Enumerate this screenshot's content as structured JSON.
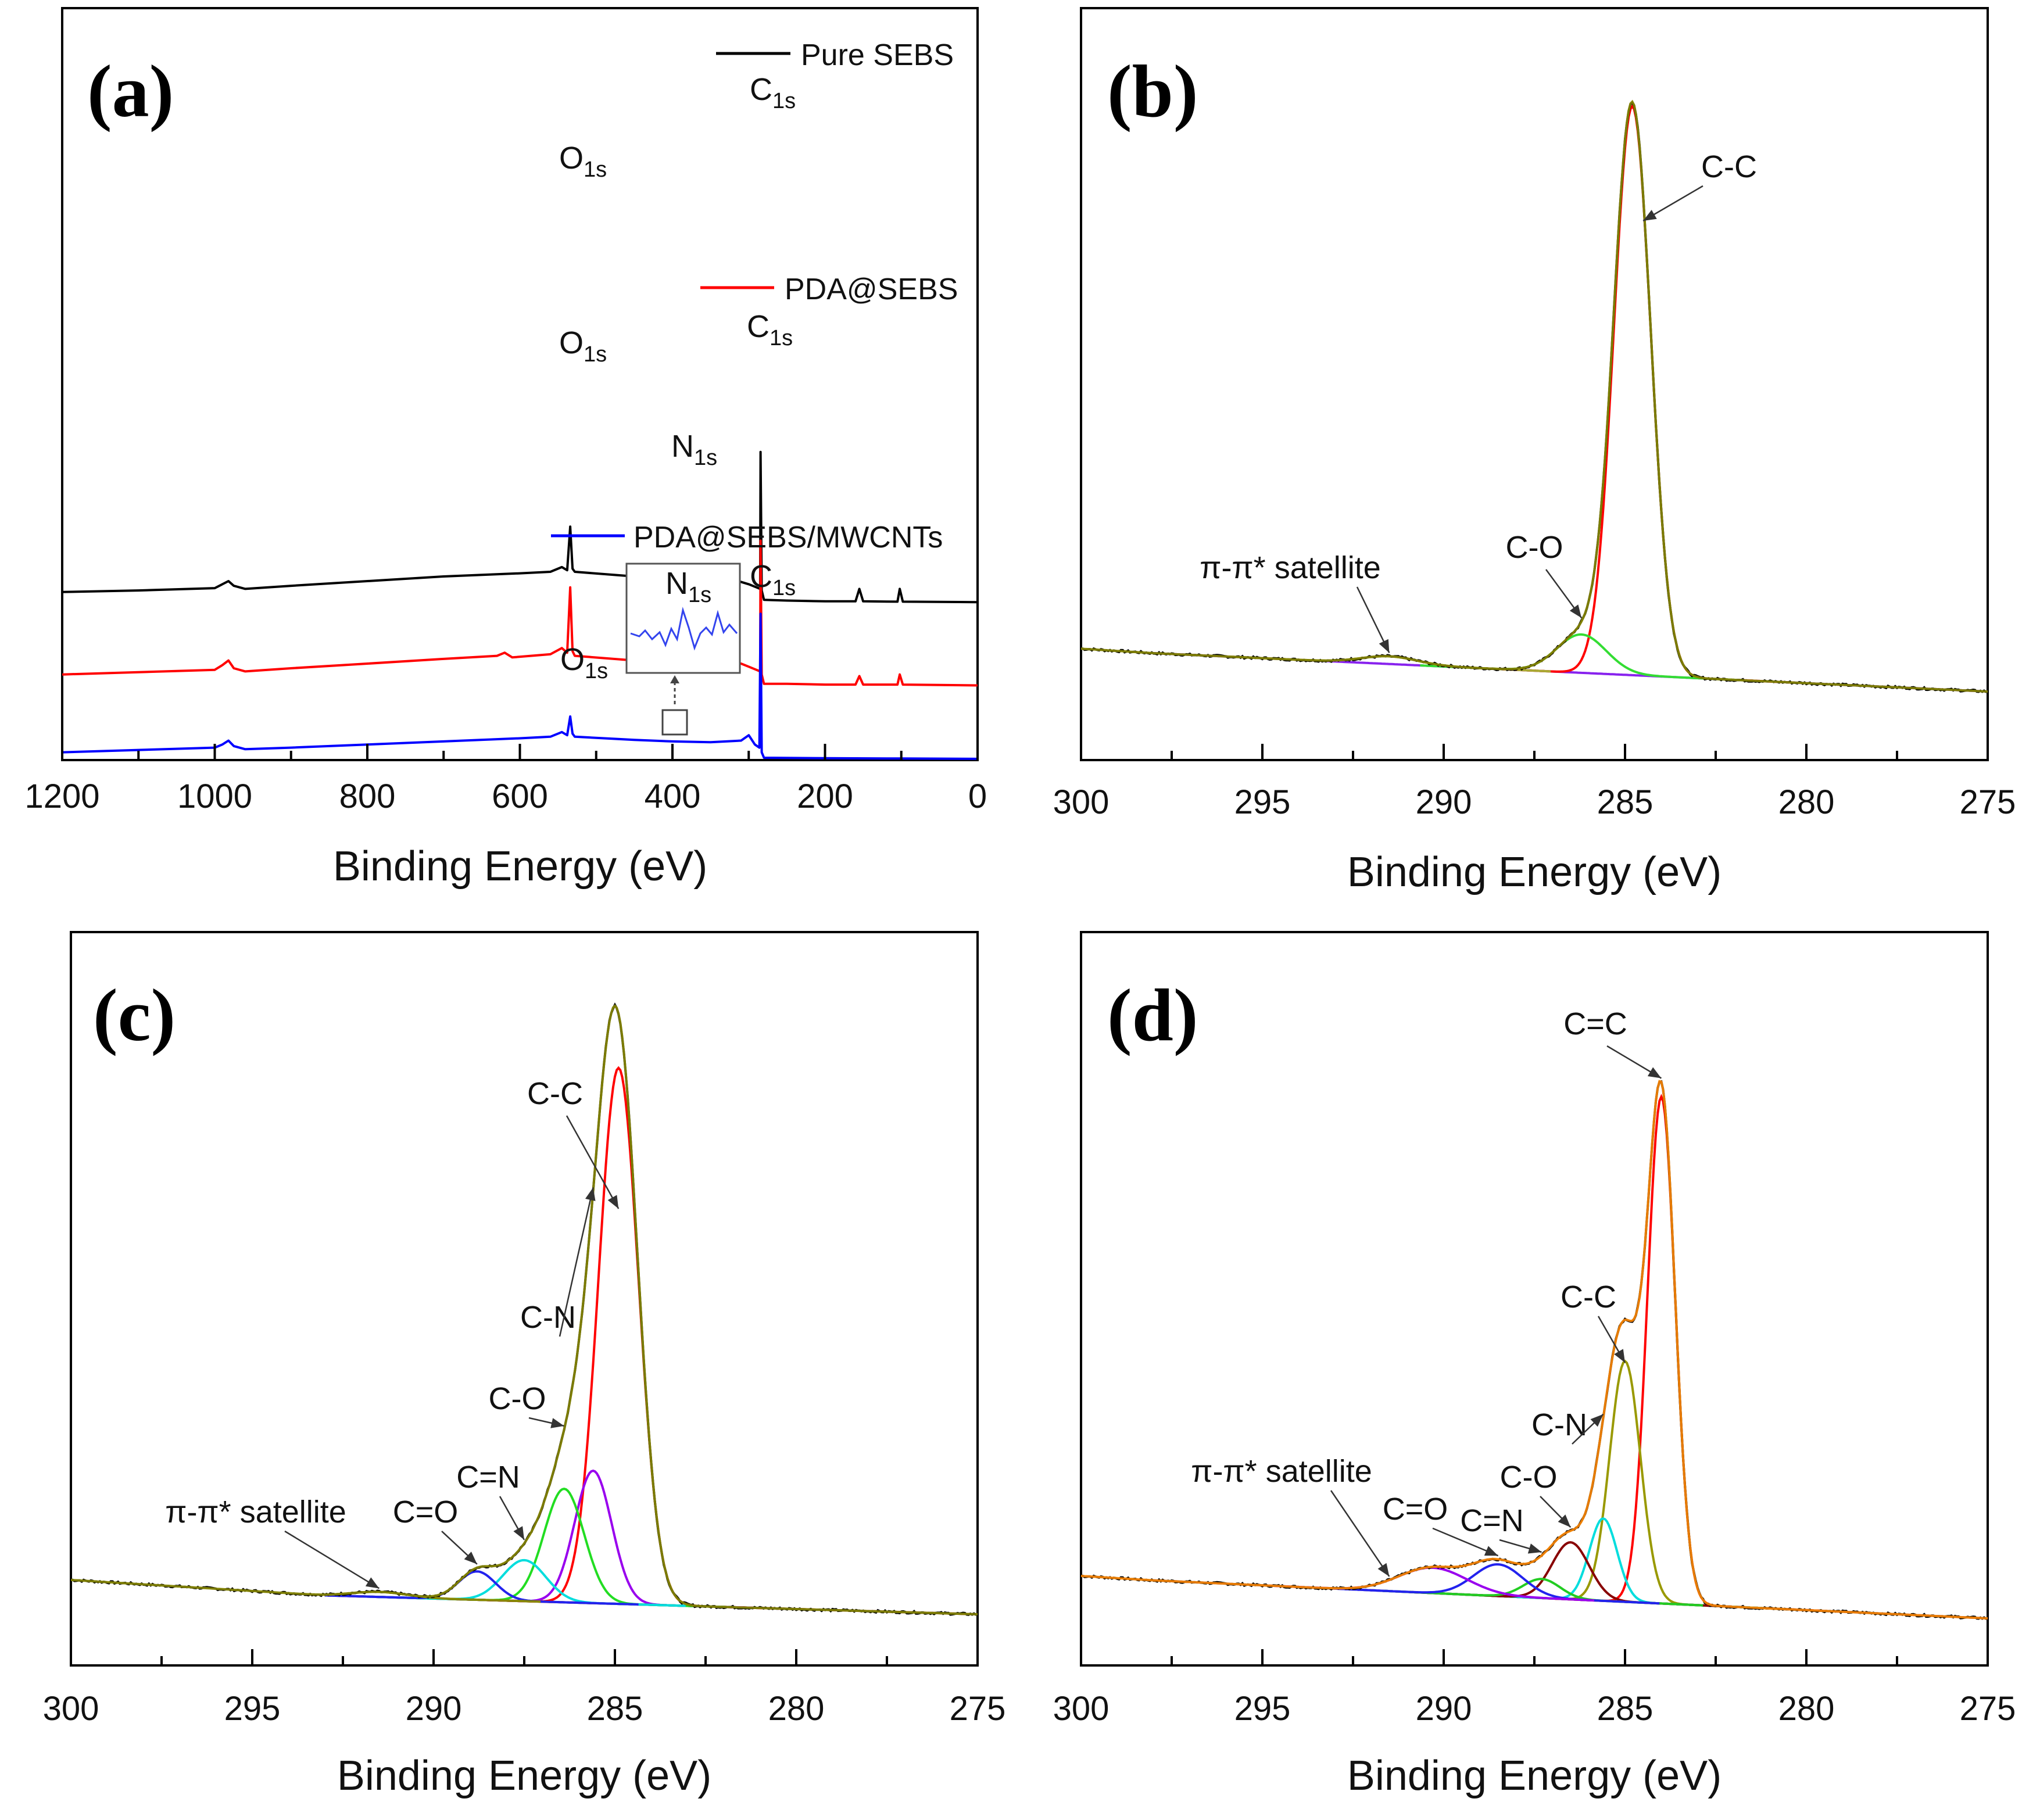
{
  "chart_data": [
    {
      "panel": "(a)",
      "type": "line",
      "title": "",
      "xlabel": "Binding Energy (eV)",
      "ylabel": "",
      "xlim": [
        1200,
        0
      ],
      "xticks": [
        1200,
        1000,
        800,
        600,
        400,
        200,
        0
      ],
      "grid": false,
      "legend_placement": "inline-right",
      "series": [
        {
          "name": "Pure SEBS",
          "color": "#000000",
          "offset": 10.8,
          "points": [
            [
              1200,
              0.0
            ],
            [
              1100,
              0.1
            ],
            [
              1000,
              0.25
            ],
            [
              990,
              0.5
            ],
            [
              982,
              0.7
            ],
            [
              975,
              0.4
            ],
            [
              960,
              0.2
            ],
            [
              900,
              0.4
            ],
            [
              800,
              0.7
            ],
            [
              700,
              1.0
            ],
            [
              600,
              1.2
            ],
            [
              560,
              1.3
            ],
            [
              545,
              1.6
            ],
            [
              538,
              1.4
            ],
            [
              534,
              4.2
            ],
            [
              531,
              1.5
            ],
            [
              528,
              1.3
            ],
            [
              450,
              1.0
            ],
            [
              350,
              0.75
            ],
            [
              310,
              0.65
            ],
            [
              300,
              0.5
            ],
            [
              290,
              0.3
            ],
            [
              285,
              0.2
            ],
            [
              284.5,
              9.0
            ],
            [
              283,
              0.1
            ],
            [
              280,
              -0.5
            ],
            [
              250,
              -0.55
            ],
            [
              200,
              -0.6
            ],
            [
              160,
              -0.6
            ],
            [
              155,
              0.2
            ],
            [
              150,
              -0.6
            ],
            [
              105,
              -0.62
            ],
            [
              102,
              0.2
            ],
            [
              98,
              -0.62
            ],
            [
              0,
              -0.65
            ]
          ]
        },
        {
          "name": "PDA@SEBS",
          "color": "#ff0000",
          "offset": 5.5,
          "points": [
            [
              1200,
              0.0
            ],
            [
              1100,
              0.15
            ],
            [
              1000,
              0.3
            ],
            [
              990,
              0.6
            ],
            [
              982,
              0.9
            ],
            [
              975,
              0.4
            ],
            [
              960,
              0.2
            ],
            [
              900,
              0.4
            ],
            [
              800,
              0.7
            ],
            [
              700,
              1.0
            ],
            [
              630,
              1.2
            ],
            [
              620,
              1.4
            ],
            [
              610,
              1.1
            ],
            [
              560,
              1.3
            ],
            [
              545,
              1.7
            ],
            [
              538,
              1.4
            ],
            [
              534,
              5.6
            ],
            [
              531,
              1.5
            ],
            [
              528,
              1.2
            ],
            [
              450,
              0.9
            ],
            [
              400,
              0.8
            ],
            [
              395,
              1.05
            ],
            [
              390,
              0.8
            ],
            [
              350,
              0.75
            ],
            [
              310,
              0.7
            ],
            [
              300,
              0.5
            ],
            [
              290,
              0.3
            ],
            [
              285,
              0.2
            ],
            [
              284.5,
              8.6
            ],
            [
              283,
              0.0
            ],
            [
              280,
              -0.6
            ],
            [
              250,
              -0.6
            ],
            [
              200,
              -0.65
            ],
            [
              160,
              -0.65
            ],
            [
              155,
              -0.1
            ],
            [
              150,
              -0.65
            ],
            [
              105,
              -0.65
            ],
            [
              102,
              0.0
            ],
            [
              98,
              -0.65
            ],
            [
              0,
              -0.7
            ]
          ]
        },
        {
          "name": "PDA@SEBS/MWCNTs",
          "color": "#0000ff",
          "offset": 0.5,
          "points": [
            [
              1200,
              0.0
            ],
            [
              1100,
              0.15
            ],
            [
              1000,
              0.3
            ],
            [
              990,
              0.5
            ],
            [
              982,
              0.75
            ],
            [
              975,
              0.4
            ],
            [
              960,
              0.2
            ],
            [
              900,
              0.3
            ],
            [
              800,
              0.5
            ],
            [
              700,
              0.7
            ],
            [
              600,
              0.9
            ],
            [
              560,
              1.0
            ],
            [
              545,
              1.3
            ],
            [
              538,
              1.1
            ],
            [
              534,
              2.3
            ],
            [
              531,
              1.2
            ],
            [
              528,
              1.0
            ],
            [
              450,
              0.8
            ],
            [
              400,
              0.7
            ],
            [
              350,
              0.65
            ],
            [
              310,
              0.75
            ],
            [
              300,
              1.1
            ],
            [
              292,
              0.5
            ],
            [
              286,
              0.3
            ],
            [
              284.5,
              8.9
            ],
            [
              283,
              0.0
            ],
            [
              280,
              -0.35
            ],
            [
              200,
              -0.38
            ],
            [
              100,
              -0.4
            ],
            [
              0,
              -0.42
            ]
          ]
        }
      ],
      "annotations": [
        {
          "text": "O",
          "sub": "1s",
          "series": "Pure SEBS"
        },
        {
          "text": "C",
          "sub": "1s",
          "series": "Pure SEBS"
        },
        {
          "text": "O",
          "sub": "1s",
          "series": "PDA@SEBS"
        },
        {
          "text": "C",
          "sub": "1s",
          "series": "PDA@SEBS"
        },
        {
          "text": "N",
          "sub": "1s",
          "series": "PDA@SEBS"
        },
        {
          "text": "O",
          "sub": "1s",
          "series": "PDA@SEBS/MWCNTs"
        },
        {
          "text": "C",
          "sub": "1s",
          "series": "PDA@SEBS/MWCNTs"
        },
        {
          "text": "N",
          "sub": "1s",
          "series": "PDA@SEBS/MWCNTs (inset)"
        }
      ]
    },
    {
      "panel": "(b)",
      "type": "line",
      "title": "",
      "xlabel": "Binding Energy (eV)",
      "ylabel": "",
      "xlim": [
        300,
        275
      ],
      "xticks": [
        300,
        295,
        290,
        285,
        280,
        275
      ],
      "ylim": [
        -1,
        100
      ],
      "grid": false,
      "series": [
        {
          "name": "raw spectrum",
          "color": "#000000",
          "kind": "raw"
        },
        {
          "name": "C-C",
          "color": "#ff0000",
          "kind": "gauss",
          "center": 284.8,
          "height": 89,
          "fwhm": 1.2
        },
        {
          "name": "C-O",
          "color": "#33dd33",
          "kind": "gauss",
          "center": 286.2,
          "height": 6,
          "fwhm": 1.6
        },
        {
          "name": "π-π* satellite",
          "color": "#aaaa33",
          "kind": "gauss",
          "center": 291.5,
          "height": 1.2,
          "fwhm": 1.8
        },
        {
          "name": "background",
          "color": "#8822ee",
          "kind": "background",
          "start": 298,
          "end": 275,
          "y_start": 6,
          "y_end": 0
        },
        {
          "name": "envelope",
          "color": "#888800",
          "kind": "envelope"
        }
      ],
      "annotations": [
        {
          "text": "C-C",
          "x": 284.5,
          "y": 82
        },
        {
          "text": "C-O",
          "x": 286.2,
          "y": 8
        },
        {
          "text": "π-π* satellite",
          "x": 291.5,
          "y": 4
        }
      ]
    },
    {
      "panel": "(c)",
      "type": "line",
      "title": "",
      "xlabel": "Binding Energy (eV)",
      "ylabel": "",
      "xlim": [
        300,
        275
      ],
      "xticks": [
        300,
        295,
        290,
        285,
        280,
        275
      ],
      "ylim": [
        -1,
        100
      ],
      "grid": false,
      "series": [
        {
          "name": "raw spectrum",
          "color": "#000000",
          "kind": "raw"
        },
        {
          "name": "C-C",
          "color": "#ff0000",
          "kind": "gauss",
          "center": 284.9,
          "height": 85,
          "fwhm": 1.3
        },
        {
          "name": "C-N",
          "color": "#9900ee",
          "kind": "gauss",
          "center": 285.6,
          "height": 21,
          "fwhm": 1.2
        },
        {
          "name": "C-O",
          "color": "#22dd22",
          "kind": "gauss",
          "center": 286.4,
          "height": 18,
          "fwhm": 1.3
        },
        {
          "name": "C=N",
          "color": "#00dddd",
          "kind": "gauss",
          "center": 287.5,
          "height": 6.5,
          "fwhm": 1.4
        },
        {
          "name": "C=O",
          "color": "#2222ee",
          "kind": "gauss",
          "center": 288.8,
          "height": 4.5,
          "fwhm": 1.2
        },
        {
          "name": "π-π* satellite",
          "color": "#888800",
          "kind": "gauss",
          "center": 291.5,
          "height": 0.8,
          "fwhm": 1.8
        },
        {
          "name": "background",
          "color": "#880000",
          "kind": "background",
          "start": 293,
          "end": 275,
          "y_start": 3,
          "y_end": 0
        },
        {
          "name": "envelope",
          "color": "#888800",
          "kind": "envelope"
        }
      ],
      "annotations": [
        {
          "text": "C-C",
          "x": 284.9,
          "y": 70
        },
        {
          "text": "C-N",
          "x": 285.6,
          "y": 21
        },
        {
          "text": "C-O",
          "x": 286.4,
          "y": 18
        },
        {
          "text": "C=N",
          "x": 287.5,
          "y": 8
        },
        {
          "text": "C=O",
          "x": 288.8,
          "y": 6
        },
        {
          "text": "π-π* satellite",
          "x": 291.5,
          "y": 3
        }
      ]
    },
    {
      "panel": "(d)",
      "type": "line",
      "title": "",
      "xlabel": "Binding Energy (eV)",
      "ylabel": "",
      "xlim": [
        300,
        275
      ],
      "xticks": [
        300,
        295,
        290,
        285,
        280,
        275
      ],
      "ylim": [
        -1,
        100
      ],
      "grid": false,
      "series": [
        {
          "name": "raw spectrum",
          "color": "#000000",
          "kind": "raw"
        },
        {
          "name": "C=C",
          "color": "#ff0000",
          "kind": "gauss",
          "center": 284.0,
          "height": 80,
          "fwhm": 0.9
        },
        {
          "name": "C-C",
          "color": "#999900",
          "kind": "gauss",
          "center": 285.0,
          "height": 38,
          "fwhm": 1.0
        },
        {
          "name": "C-N",
          "color": "#00dddd",
          "kind": "gauss",
          "center": 285.6,
          "height": 13,
          "fwhm": 0.9
        },
        {
          "name": "C-O",
          "color": "#880000",
          "kind": "gauss",
          "center": 286.5,
          "height": 9,
          "fwhm": 1.2
        },
        {
          "name": "C=N",
          "color": "#22cc22",
          "kind": "gauss",
          "center": 287.3,
          "height": 3,
          "fwhm": 1.2
        },
        {
          "name": "C=O",
          "color": "#2222ee",
          "kind": "gauss",
          "center": 288.5,
          "height": 5,
          "fwhm": 1.6
        },
        {
          "name": "π-π* satellite",
          "color": "#9900ee",
          "kind": "gauss",
          "center": 290.3,
          "height": 4,
          "fwhm": 2.2
        },
        {
          "name": "background",
          "color": "#884488",
          "kind": "background",
          "start": 298,
          "end": 275,
          "y_start": 6,
          "y_end": 0
        },
        {
          "name": "envelope",
          "color": "#ff8800",
          "kind": "envelope"
        }
      ],
      "annotations": [
        {
          "text": "C=C",
          "x": 284.0,
          "y": 75
        },
        {
          "text": "C-C",
          "x": 285.0,
          "y": 38
        },
        {
          "text": "C-N",
          "x": 285.6,
          "y": 13
        },
        {
          "text": "C-O",
          "x": 286.5,
          "y": 9
        },
        {
          "text": "C=N",
          "x": 287.3,
          "y": 4
        },
        {
          "text": "C=O",
          "x": 288.5,
          "y": 6
        },
        {
          "text": "π-π* satellite",
          "x": 291.5,
          "y": 7
        }
      ]
    }
  ]
}
